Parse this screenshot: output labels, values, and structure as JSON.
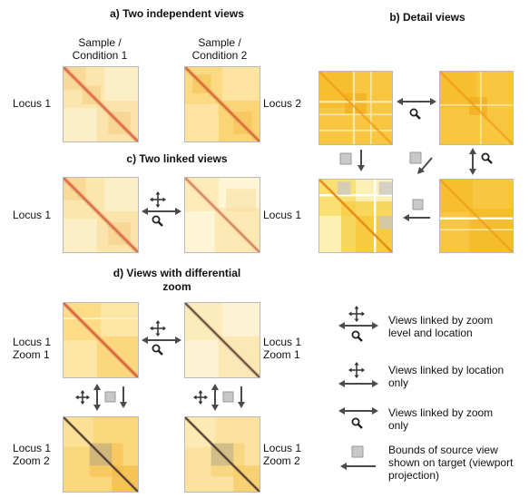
{
  "sections": {
    "a_title": "a) Two independent views",
    "b_title": "b) Detail views",
    "c_title": "c) Two linked views",
    "d_title_1": "d) Views with differential",
    "d_title_2": "zoom"
  },
  "section_a": {
    "sample_1": "Sample /",
    "condition_1": "Condition 1",
    "sample_2": "Sample /",
    "condition_2": "Condition 2",
    "locus_left": "Locus 1",
    "locus_right": "Locus 2"
  },
  "section_c": {
    "locus_left": "Locus 1",
    "locus_right": "Locus 1"
  },
  "section_d": {
    "tl_locus": "Locus 1",
    "tl_zoom": "Zoom 1",
    "tr_locus": "Locus 1",
    "tr_zoom": "Zoom 1",
    "bl_locus": "Locus 1",
    "bl_zoom": "Zoom 2",
    "br_locus": "Locus 1",
    "br_zoom": "Zoom 2"
  },
  "legend": {
    "zoom_and_location_1": "Views linked by zoom",
    "zoom_and_location_2": "level and location",
    "location_only_1": "Views linked by location",
    "location_only_2": "only",
    "zoom_only_1": "Views linked by zoom",
    "zoom_only_2": "only",
    "bounds_1": "Bounds of source view",
    "bounds_2": "shown on target (viewport",
    "bounds_3": "projection)"
  },
  "colors": {
    "heatmap_light": "#fdf1c4",
    "heatmap_mid": "#f8c84a",
    "heatmap_bright": "#f2b400",
    "diagonal_red": "#d9694a",
    "diagonal_dark": "#6b4a3a",
    "arrow": "#4a4a4a",
    "viewport_box": "#c8c8c8"
  }
}
